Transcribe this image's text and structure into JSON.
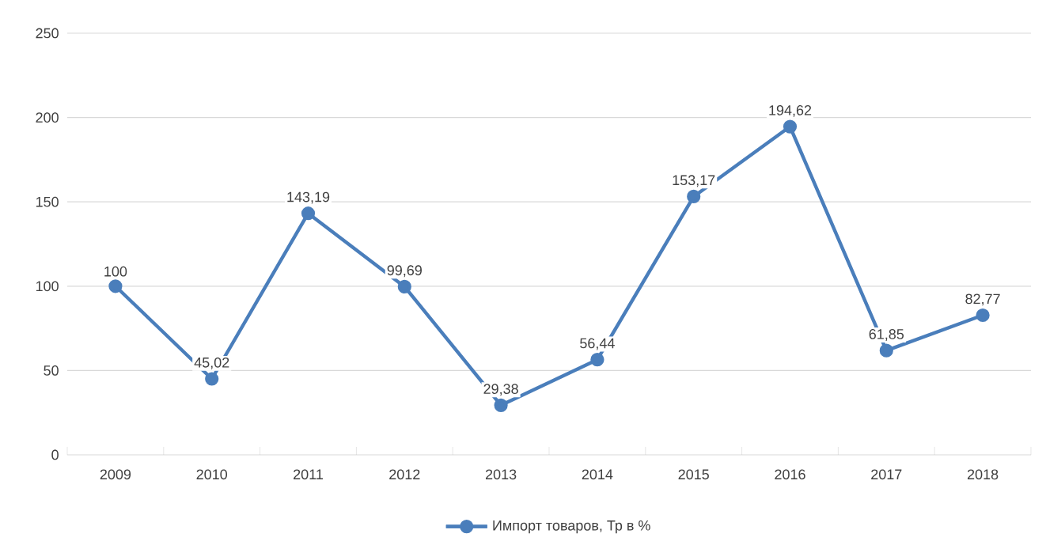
{
  "chart_data": {
    "type": "line",
    "categories": [
      "2009",
      "2010",
      "2011",
      "2012",
      "2013",
      "2014",
      "2015",
      "2016",
      "2017",
      "2018"
    ],
    "series": [
      {
        "name": "Импорт товаров, Тр в %",
        "color": "#4a7ebb",
        "values": [
          100,
          45.02,
          143.19,
          99.69,
          29.38,
          56.44,
          153.17,
          194.62,
          61.85,
          82.77
        ],
        "value_labels": [
          "100",
          "45,02",
          "143,19",
          "99,69",
          "29,38",
          "56,44",
          "153,17",
          "194,62",
          "61,85",
          "82,77"
        ]
      }
    ],
    "ylim": [
      0,
      250
    ],
    "yticks": [
      0,
      50,
      100,
      150,
      200,
      250
    ],
    "grid": "y",
    "legend": "bottom",
    "marker": "circle",
    "line_style": "solid"
  }
}
